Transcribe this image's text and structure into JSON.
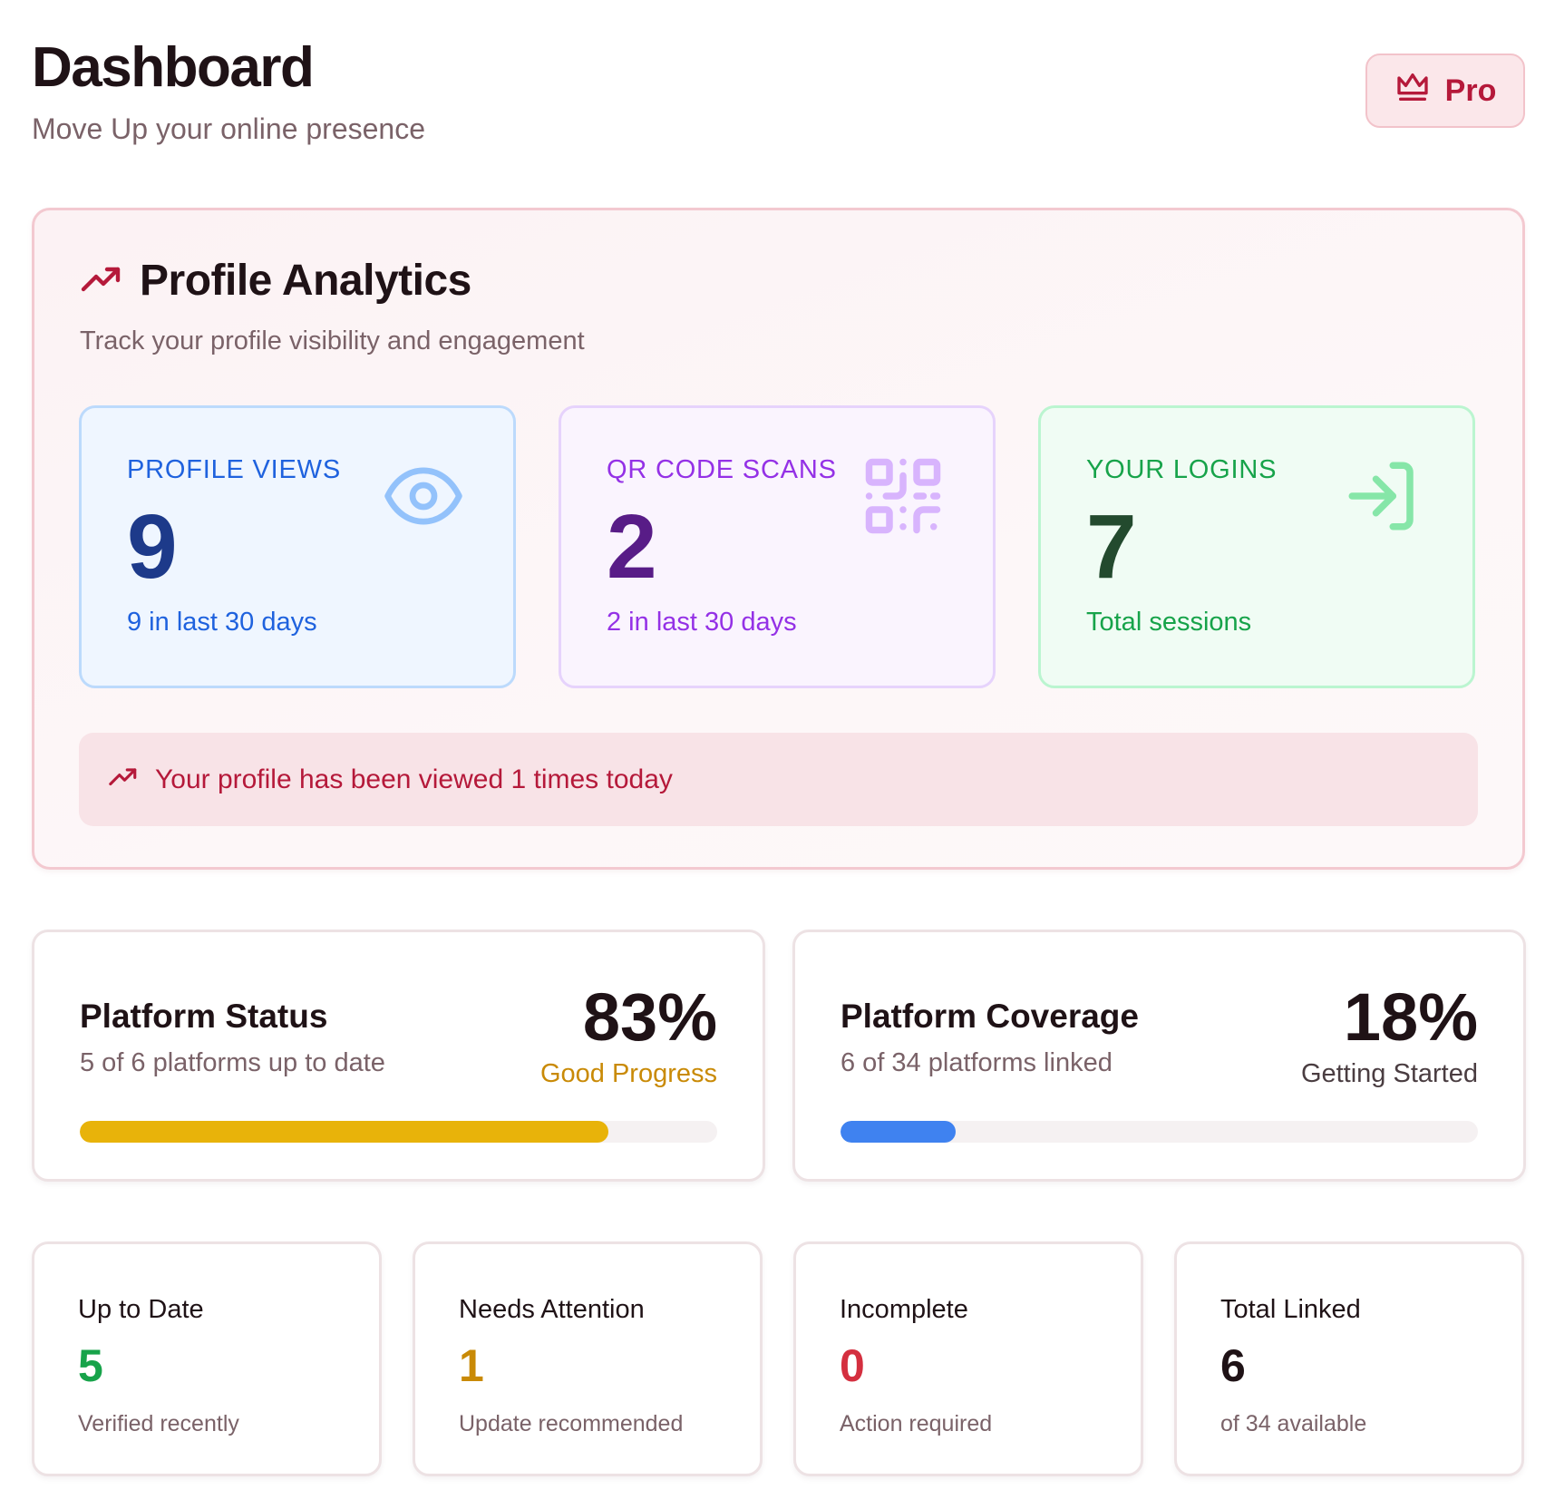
{
  "header": {
    "title": "Dashboard",
    "subtitle": "Move Up your online presence",
    "pro_button": {
      "label": "Pro",
      "icon": "crown-icon",
      "color": "#b5193a"
    }
  },
  "analytics": {
    "title": "Profile Analytics",
    "title_icon": "trending-up-icon",
    "subtitle": "Track your profile visibility and engagement",
    "stats": [
      {
        "label": "PROFILE VIEWS",
        "value": "9",
        "caption": "9 in last 30 days",
        "icon": "eye-icon",
        "accent": "#1f62de"
      },
      {
        "label": "QR CODE SCANS",
        "value": "2",
        "caption": "2 in last 30 days",
        "icon": "qr-code-icon",
        "accent": "#9431e6"
      },
      {
        "label": "YOUR LOGINS",
        "value": "7",
        "caption": "Total sessions",
        "icon": "login-icon",
        "accent": "#17a34a"
      }
    ],
    "banner": {
      "text": "Your profile has been viewed 1 times today",
      "icon": "trending-up-icon"
    }
  },
  "platforms": {
    "status": {
      "title": "Platform Status",
      "subtitle": "5 of 6 platforms up to date",
      "percent": "83%",
      "percent_value": 83,
      "status_label": "Good Progress",
      "status_color": "#c98a06",
      "bar_color": "#e8b30a"
    },
    "coverage": {
      "title": "Platform Coverage",
      "subtitle": "6 of 34 platforms linked",
      "percent": "18%",
      "percent_value": 18,
      "status_label": "Getting Started",
      "status_color": "#4a3d41",
      "bar_color": "#3f82f0"
    }
  },
  "summary": [
    {
      "title": "Up to Date",
      "value": "5",
      "caption": "Verified recently",
      "color": "#17a34a"
    },
    {
      "title": "Needs Attention",
      "value": "1",
      "caption": "Update recommended",
      "color": "#c98a06"
    },
    {
      "title": "Incomplete",
      "value": "0",
      "caption": "Action required",
      "color": "#d42f3f"
    },
    {
      "title": "Total Linked",
      "value": "6",
      "caption": "of 34 available",
      "color": "#1f1216"
    }
  ]
}
